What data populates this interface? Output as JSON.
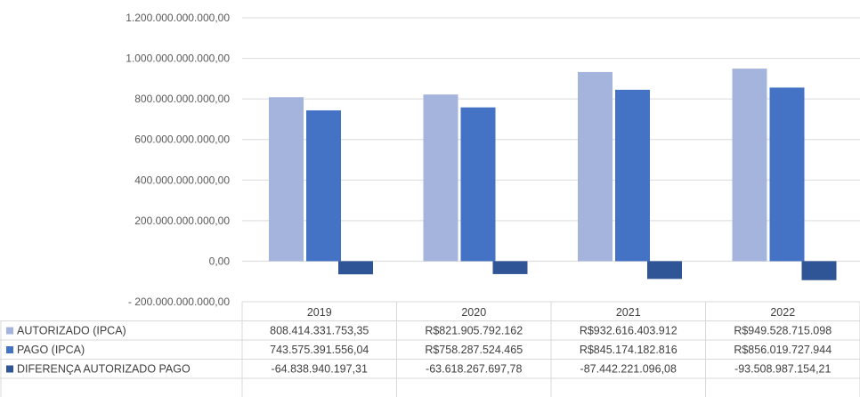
{
  "chart_data": {
    "type": "bar",
    "title": "",
    "xlabel": "",
    "ylabel": "",
    "categories": [
      "2019",
      "2020",
      "2021",
      "2022"
    ],
    "ylim": [
      -200000000000,
      1200000000000
    ],
    "ytick_values": [
      -200000000000,
      0,
      200000000000,
      400000000000,
      600000000000,
      800000000000,
      1000000000000,
      1200000000000
    ],
    "ytick_labels": [
      "- 200.000.000.000,00",
      "0,00",
      "200.000.000.000,00",
      "400.000.000.000,00",
      "600.000.000.000,00",
      "800.000.000.000,00",
      "1.000.000.000.000,00",
      "1.200.000.000.000,00"
    ],
    "grid": true,
    "legend_placement": "data-table-left",
    "series": [
      {
        "name": "AUTORIZADO (IPCA)",
        "color": "#A5B4DC",
        "values": [
          808414331753.35,
          821905792162,
          932616403912,
          949528715098
        ],
        "labels": [
          "808.414.331.753,35",
          "R$821.905.792.162",
          "R$932.616.403.912",
          "R$949.528.715.098"
        ]
      },
      {
        "name": "PAGO (IPCA)",
        "color": "#4472C4",
        "values": [
          743575391556.04,
          758287524465,
          845174182816,
          856019727944
        ],
        "labels": [
          "743.575.391.556,04",
          "R$758.287.524.465",
          "R$845.174.182.816",
          "R$856.019.727.944"
        ]
      },
      {
        "name": "DIFERENÇA AUTORIZADO PAGO",
        "color": "#2F5597",
        "values": [
          -64838940197.31,
          -63618267697.78,
          -87442221096.08,
          -93508987154.21
        ],
        "labels": [
          "-64.838.940.197,31",
          "-63.618.267.697,78",
          "-87.442.221.096,08",
          "-93.508.987.154,21"
        ]
      }
    ]
  }
}
